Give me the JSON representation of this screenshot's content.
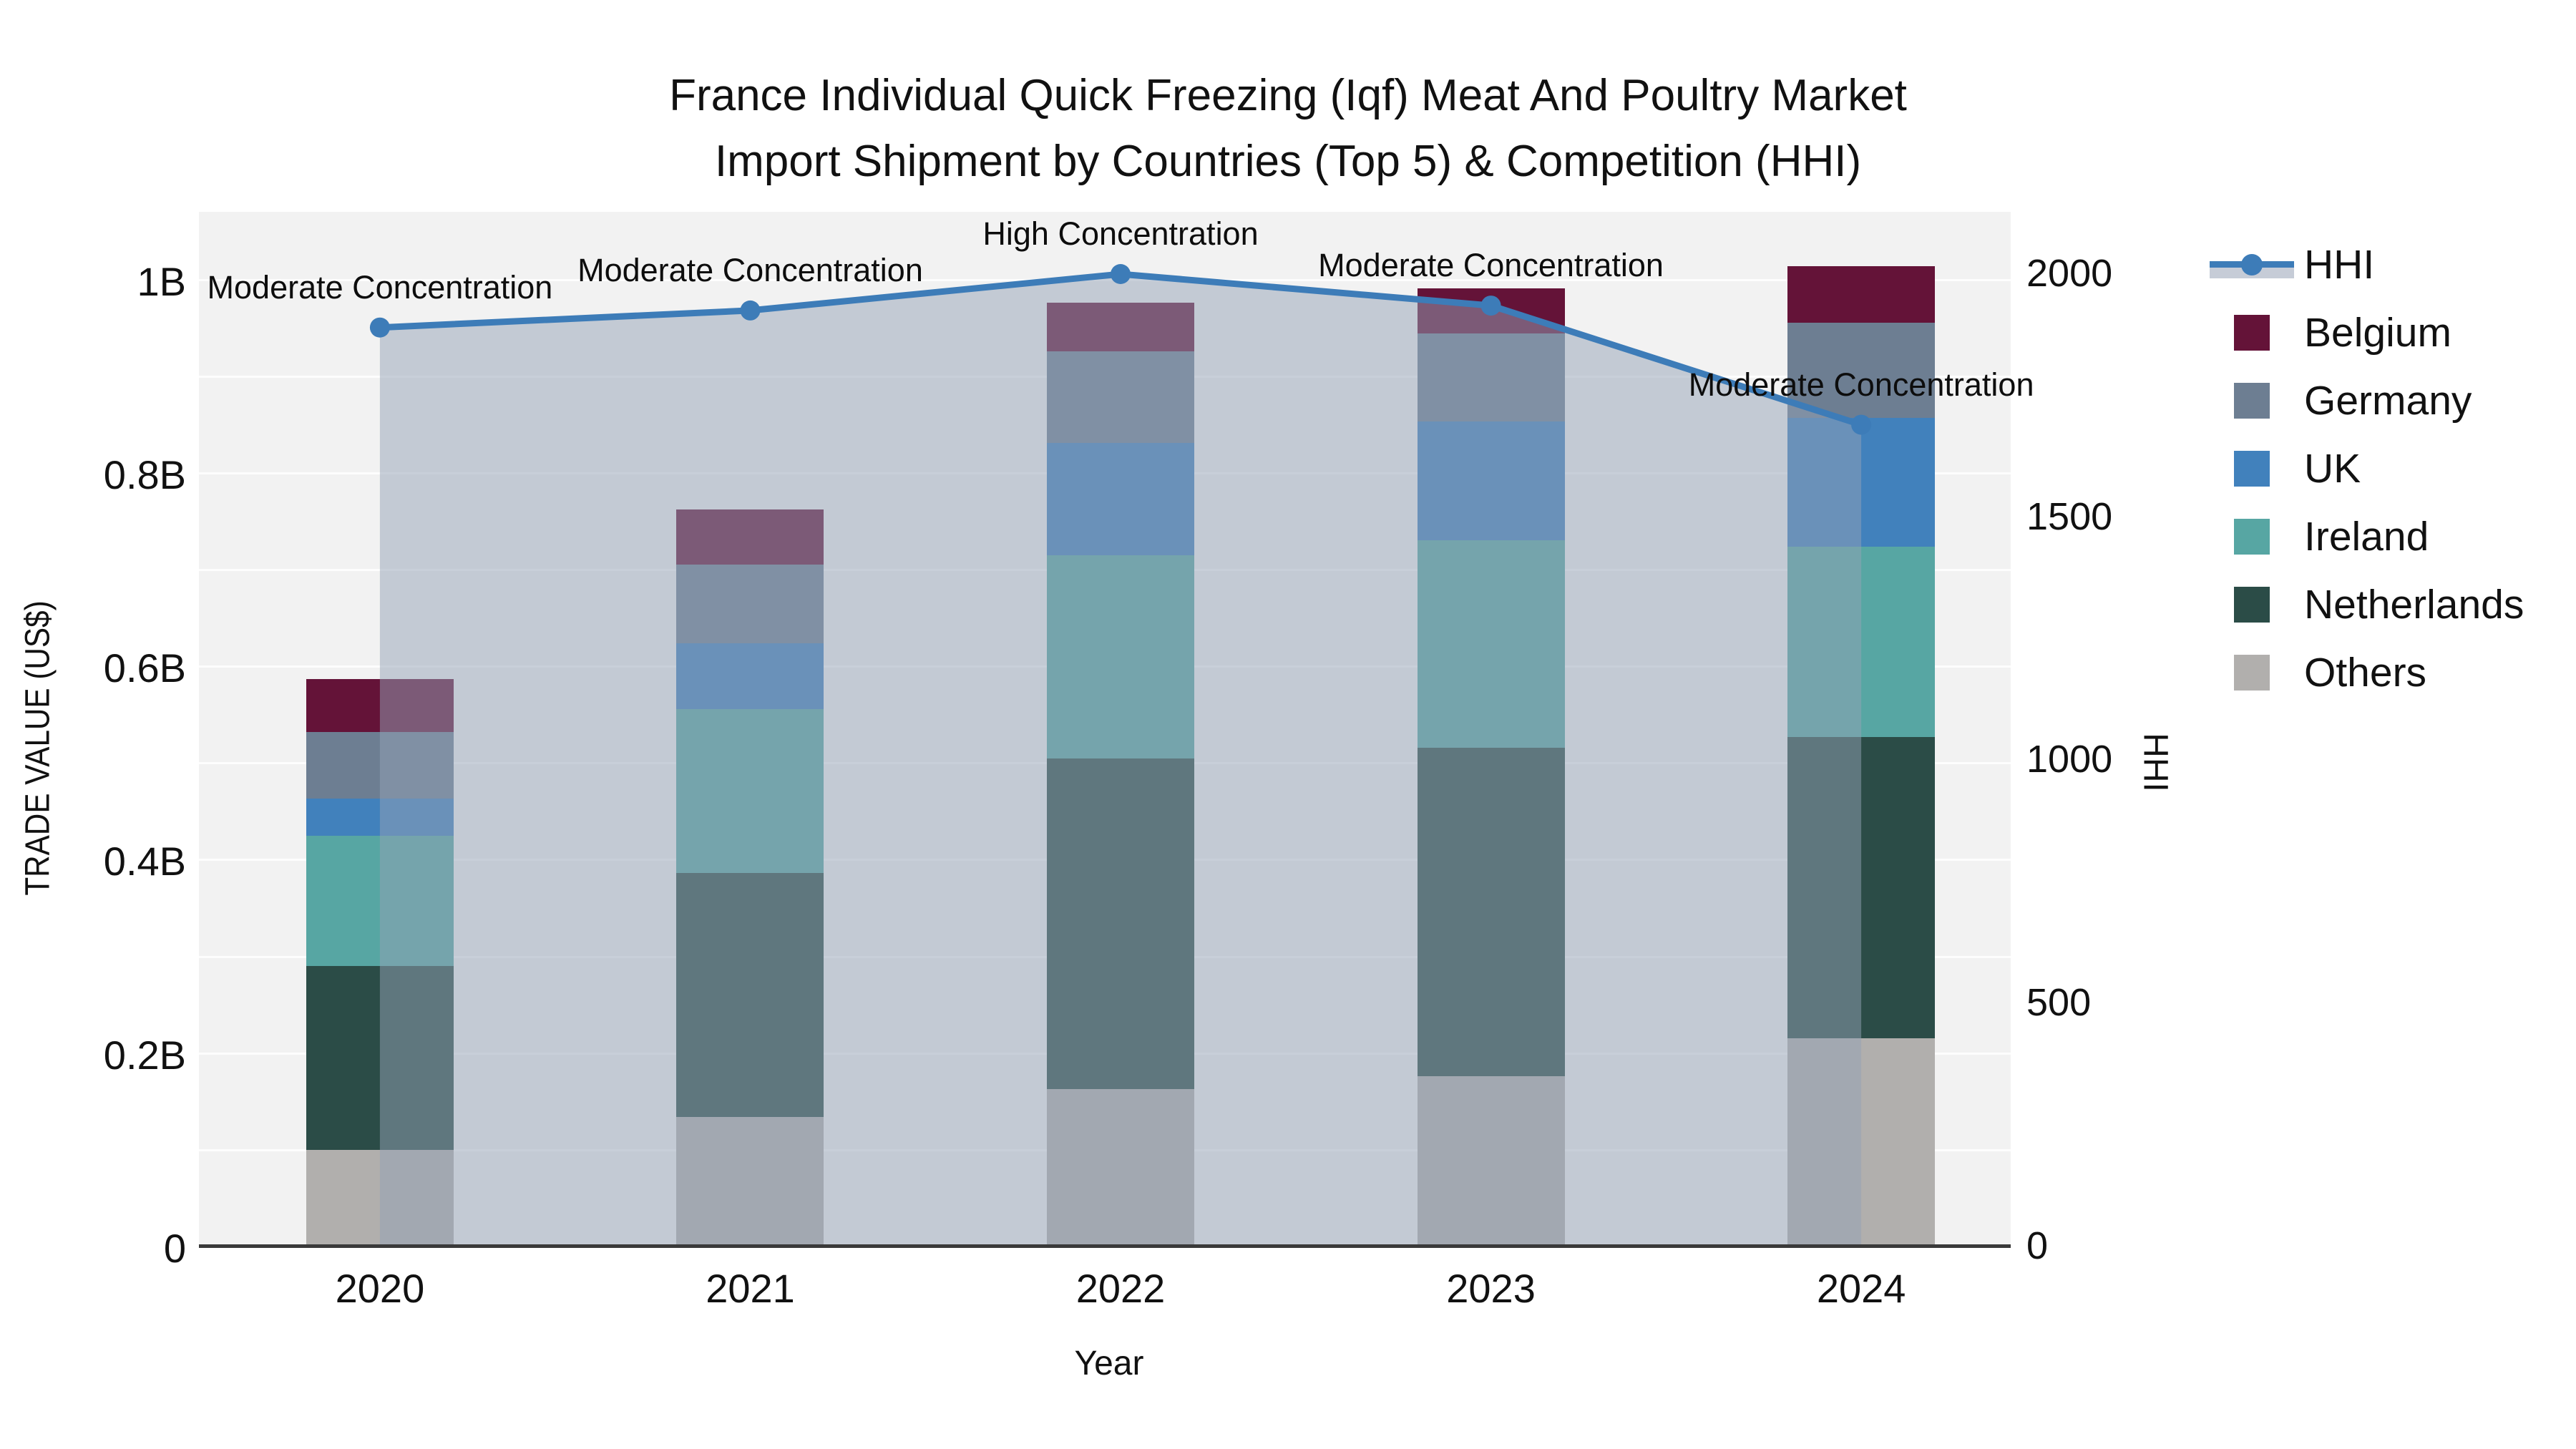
{
  "chart_data": {
    "type": "stacked-bar-with-line-dual-axis",
    "title_line1": "France Individual Quick Freezing (Iqf) Meat And Poultry Market",
    "title_line2": "Import Shipment by Countries (Top 5) & Competition (HHI)",
    "xlabel": "Year",
    "ylabel": "TRADE VALUE (US$)",
    "y2label": "HHI",
    "value_unit": "billions of US$",
    "categories": [
      "2020",
      "2021",
      "2022",
      "2023",
      "2024"
    ],
    "stack_order_bottom_to_top": [
      "Others",
      "Netherlands",
      "Ireland",
      "UK",
      "Germany",
      "Belgium"
    ],
    "series": [
      {
        "name": "Belgium",
        "values": [
          0.055,
          0.057,
          0.05,
          0.047,
          0.059
        ]
      },
      {
        "name": "Germany",
        "values": [
          0.069,
          0.081,
          0.095,
          0.091,
          0.098
        ]
      },
      {
        "name": "UK",
        "values": [
          0.038,
          0.068,
          0.116,
          0.123,
          0.133
        ]
      },
      {
        "name": "Ireland",
        "values": [
          0.135,
          0.17,
          0.21,
          0.214,
          0.197
        ]
      },
      {
        "name": "Netherlands",
        "values": [
          0.19,
          0.252,
          0.342,
          0.34,
          0.312
        ]
      },
      {
        "name": "Others",
        "values": [
          0.1,
          0.134,
          0.163,
          0.176,
          0.215
        ]
      }
    ],
    "bar_totals": [
      0.587,
      0.762,
      0.976,
      0.991,
      1.014
    ],
    "hhi": {
      "name": "HHI",
      "values": [
        1890,
        1925,
        2000,
        1935,
        1690
      ],
      "annotations": [
        "Moderate Concentration",
        "Moderate Concentration",
        "High Concentration",
        "Moderate Concentration",
        "Moderate Concentration"
      ]
    },
    "yticks": [
      {
        "value": 0.0,
        "label": "0"
      },
      {
        "value": 0.2,
        "label": "0.2B"
      },
      {
        "value": 0.4,
        "label": "0.4B"
      },
      {
        "value": 0.6,
        "label": "0.6B"
      },
      {
        "value": 0.8,
        "label": "0.8B"
      },
      {
        "value": 1.0,
        "label": "1B"
      }
    ],
    "y2ticks": [
      {
        "value": 0,
        "label": "0"
      },
      {
        "value": 500,
        "label": "500"
      },
      {
        "value": 1000,
        "label": "1000"
      },
      {
        "value": 1500,
        "label": "1500"
      },
      {
        "value": 2000,
        "label": "2000"
      }
    ],
    "ylim": [
      0,
      1.07
    ],
    "y2lim": [
      0,
      2128
    ],
    "grid_step": 0.1,
    "legend_position": "right",
    "colors": {
      "Belgium": "#641338",
      "Germany": "#6d7e92",
      "UK": "#4181bc",
      "Ireland": "#57a6a3",
      "Netherlands": "#2b4c47",
      "Others": "#b1afad",
      "hhi_line": "#3d7cb8",
      "hhi_fill": "rgba(147,161,181,0.5)",
      "plot_bg": "#f2f2f2",
      "axis_line": "#3a3a3a"
    },
    "legend": {
      "entries": [
        "HHI",
        "Belgium",
        "Germany",
        "UK",
        "Ireland",
        "Netherlands",
        "Others"
      ]
    }
  }
}
